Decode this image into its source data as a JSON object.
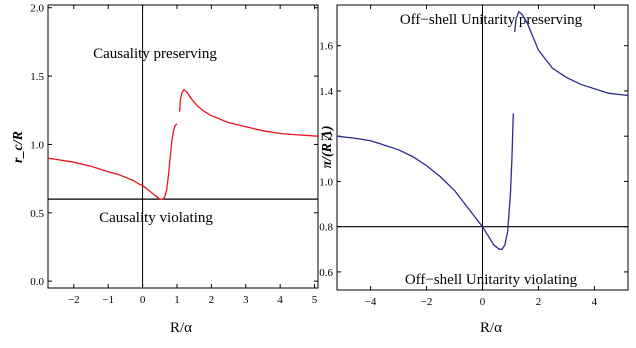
{
  "chart_data": [
    {
      "type": "line",
      "xlabel": "R/α",
      "ylabel": "r_c/R",
      "xlim": [
        -2.75,
        5.1
      ],
      "ylim": [
        -0.05,
        2.02
      ],
      "xticks": [
        -2,
        -1,
        0,
        1,
        2,
        3,
        4,
        5
      ],
      "xtick_labels": [
        "−2",
        "−1",
        "0",
        "1",
        "2",
        "3",
        "4",
        "5"
      ],
      "yticks": [
        0.0,
        0.5,
        1.0,
        1.5,
        2.0
      ],
      "ytick_labels": [
        "0.0",
        "0.5",
        "1.0",
        "1.5",
        "2.0"
      ],
      "threshold": 0.6,
      "series_color": "#e8141c",
      "annotations": [
        "Causality preserving",
        "Causality violating"
      ],
      "series": [
        {
          "x": [
            -2.75,
            -2.5,
            -2.0,
            -1.5,
            -1.0,
            -0.7,
            -0.5,
            -0.3,
            -0.1,
            0.0,
            0.1,
            0.2,
            0.3,
            0.4,
            0.5,
            0.6,
            0.65,
            0.7,
            0.75,
            0.8,
            0.85,
            0.9,
            0.95,
            1.0
          ],
          "y": [
            0.9,
            0.89,
            0.87,
            0.84,
            0.8,
            0.78,
            0.76,
            0.74,
            0.71,
            0.7,
            0.68,
            0.66,
            0.64,
            0.62,
            0.6,
            0.6,
            0.62,
            0.67,
            0.77,
            0.9,
            1.02,
            1.1,
            1.14,
            1.15
          ]
        },
        {
          "x": [
            1.08,
            1.1,
            1.15,
            1.2,
            1.3,
            1.4,
            1.6,
            1.8,
            2.0,
            2.5,
            3.0,
            3.5,
            4.0,
            4.5,
            5.1
          ],
          "y": [
            1.24,
            1.33,
            1.38,
            1.4,
            1.38,
            1.34,
            1.28,
            1.24,
            1.21,
            1.16,
            1.13,
            1.1,
            1.08,
            1.07,
            1.06
          ]
        }
      ]
    },
    {
      "type": "line",
      "xlabel": "R/α",
      "ylabel": "π/(R Λ)",
      "xlim": [
        -5.2,
        5.2
      ],
      "ylim": [
        0.52,
        1.78
      ],
      "xticks": [
        -4,
        -2,
        0,
        2,
        4
      ],
      "xtick_labels": [
        "−4",
        "−2",
        "0",
        "2",
        "4"
      ],
      "yticks": [
        0.6,
        0.8,
        1.0,
        1.2,
        1.4,
        1.6
      ],
      "ytick_labels": [
        "0.6",
        "0.8",
        "1.0",
        "1.2",
        "1.4",
        "1.6"
      ],
      "threshold": 0.8,
      "series_color": "#2b2b8f",
      "annotations": [
        "Off−shell Unitarity preserving",
        "Off−shell Unitarity violating"
      ],
      "series": [
        {
          "x": [
            -5.2,
            -4.5,
            -4.0,
            -3.5,
            -3.0,
            -2.5,
            -2.0,
            -1.5,
            -1.0,
            -0.5,
            0.0,
            0.2,
            0.4,
            0.6,
            0.7,
            0.8,
            0.9,
            1.0,
            1.05,
            1.1
          ],
          "y": [
            1.2,
            1.19,
            1.18,
            1.16,
            1.14,
            1.11,
            1.07,
            1.02,
            0.96,
            0.88,
            0.8,
            0.76,
            0.72,
            0.7,
            0.7,
            0.72,
            0.78,
            0.95,
            1.1,
            1.3
          ]
        },
        {
          "x": [
            1.15,
            1.2,
            1.3,
            1.4,
            1.6,
            1.8,
            2.0,
            2.5,
            3.0,
            3.5,
            4.0,
            4.5,
            5.2
          ],
          "y": [
            1.66,
            1.72,
            1.75,
            1.74,
            1.7,
            1.64,
            1.58,
            1.5,
            1.46,
            1.43,
            1.41,
            1.39,
            1.38
          ]
        }
      ]
    }
  ]
}
